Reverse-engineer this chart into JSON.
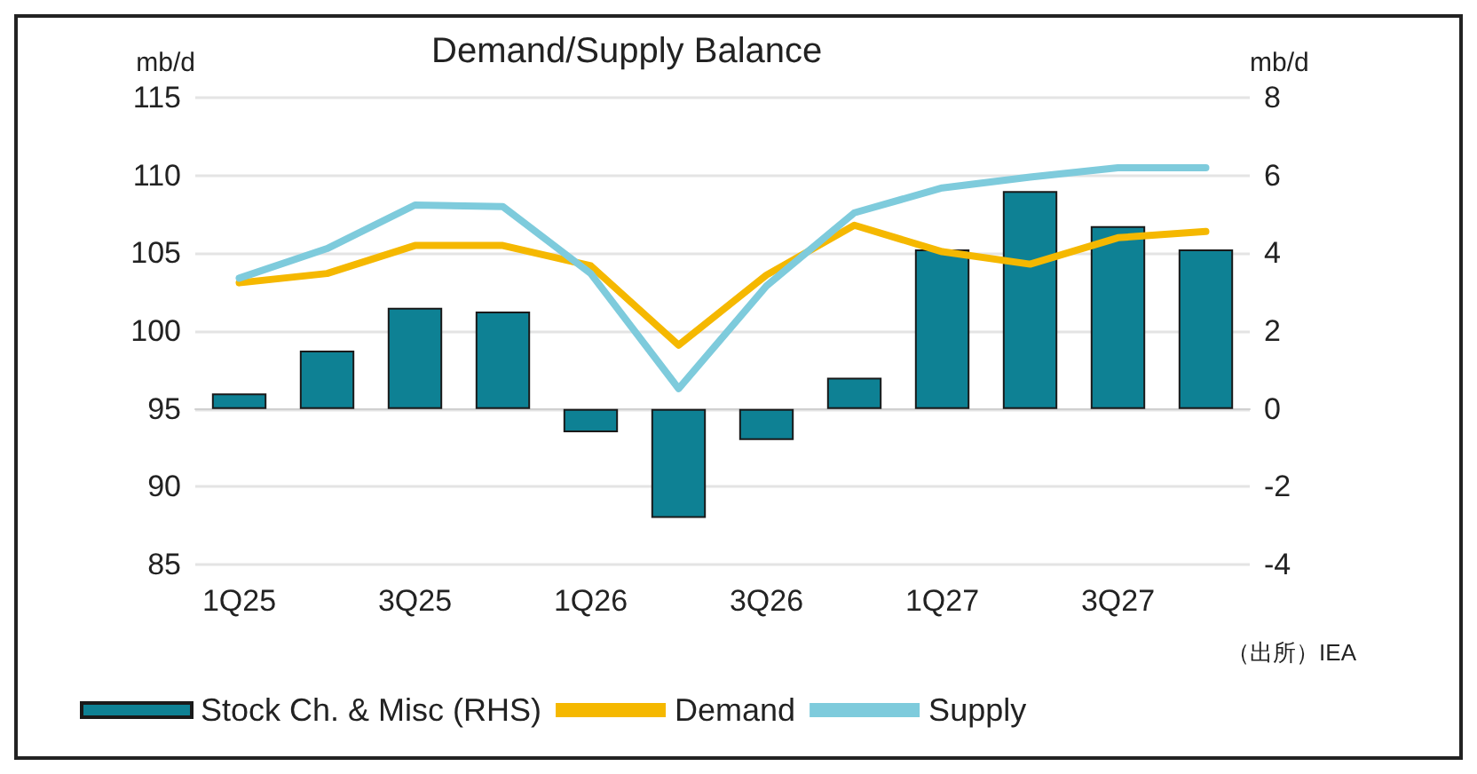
{
  "chart_data": {
    "type": "line",
    "title": "Demand/Supply Balance",
    "ylabel": "mb/d",
    "y2label": "mb/d",
    "categories": [
      "1Q25",
      null,
      "3Q25",
      null,
      "1Q26",
      null,
      "3Q26",
      null,
      "1Q27",
      null,
      "3Q27",
      null
    ],
    "series": [
      {
        "name": "Stock Ch. & Misc (RHS)",
        "type": "bar",
        "axis": "y2",
        "color": "#0e8194",
        "values": [
          0.4,
          1.5,
          2.6,
          2.5,
          -0.6,
          -2.8,
          -0.8,
          0.8,
          4.1,
          5.6,
          4.7,
          4.1
        ]
      },
      {
        "name": "Demand",
        "color": "#f5b800",
        "values": [
          103.1,
          103.7,
          105.5,
          105.5,
          104.2,
          99.1,
          103.6,
          106.8,
          105.1,
          104.3,
          106.0,
          106.4
        ]
      },
      {
        "name": "Supply",
        "color": "#7ecbdc",
        "values": [
          103.4,
          105.3,
          108.1,
          108.0,
          103.7,
          96.3,
          102.9,
          107.6,
          109.2,
          109.9,
          110.5,
          110.5
        ]
      }
    ],
    "ylim": [
      85,
      115
    ],
    "yticks": [
      85,
      90,
      95,
      100,
      105,
      110,
      115
    ],
    "y2lim": [
      -4,
      8
    ],
    "y2ticks": [
      -4,
      -2,
      0,
      2,
      4,
      6,
      8
    ],
    "grid": "y",
    "legend": "bottom",
    "marker": "none",
    "line_style": "solid",
    "annotations": [
      "（出所）IEA"
    ]
  }
}
